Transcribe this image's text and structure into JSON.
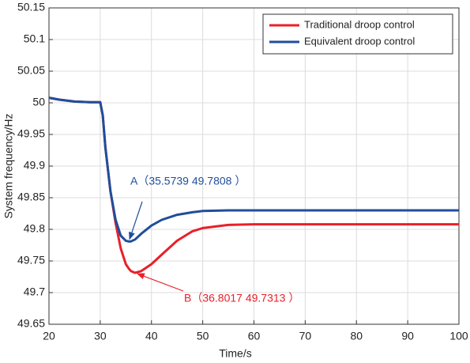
{
  "chart_data": {
    "type": "line",
    "xlabel": "Time/s",
    "ylabel": "System frequency/Hz",
    "x": [
      20,
      22,
      25,
      28,
      30,
      30.5,
      31,
      32,
      33,
      34,
      35,
      35.5739,
      36,
      36.8017,
      38,
      40,
      42,
      45,
      48,
      50,
      55,
      60,
      70,
      80,
      90,
      100
    ],
    "series": [
      {
        "name": "Traditional droop control",
        "color": "#e8202a",
        "values": [
          50.008,
          50.005,
          50.002,
          50.001,
          50.001,
          49.98,
          49.93,
          49.86,
          49.81,
          49.77,
          49.745,
          49.738,
          49.734,
          49.7313,
          49.734,
          49.745,
          49.76,
          49.782,
          49.797,
          49.802,
          49.807,
          49.808,
          49.808,
          49.808,
          49.808,
          49.808
        ]
      },
      {
        "name": "Equivalent droop control",
        "color": "#1f4e9c",
        "values": [
          50.008,
          50.005,
          50.002,
          50.001,
          50.001,
          49.98,
          49.93,
          49.86,
          49.815,
          49.79,
          49.782,
          49.7808,
          49.781,
          49.784,
          49.793,
          49.806,
          49.815,
          49.823,
          49.827,
          49.829,
          49.83,
          49.83,
          49.83,
          49.83,
          49.83,
          49.83
        ]
      }
    ],
    "annotations": [
      {
        "text": "A（35.5739  49.7808 ）",
        "color": "#1f4e9c"
      },
      {
        "text": "B（36.8017  49.7313 ）",
        "color": "#e8202a"
      }
    ],
    "xlim": [
      20,
      100
    ],
    "xticks": [
      20,
      30,
      40,
      50,
      60,
      70,
      80,
      90,
      100
    ],
    "ylim": [
      49.65,
      50.15
    ],
    "yticks": [
      49.65,
      49.7,
      49.75,
      49.8,
      49.85,
      49.9,
      49.95,
      50,
      50.05,
      50.1,
      50.15
    ],
    "grid": true,
    "legend": "upper right"
  }
}
